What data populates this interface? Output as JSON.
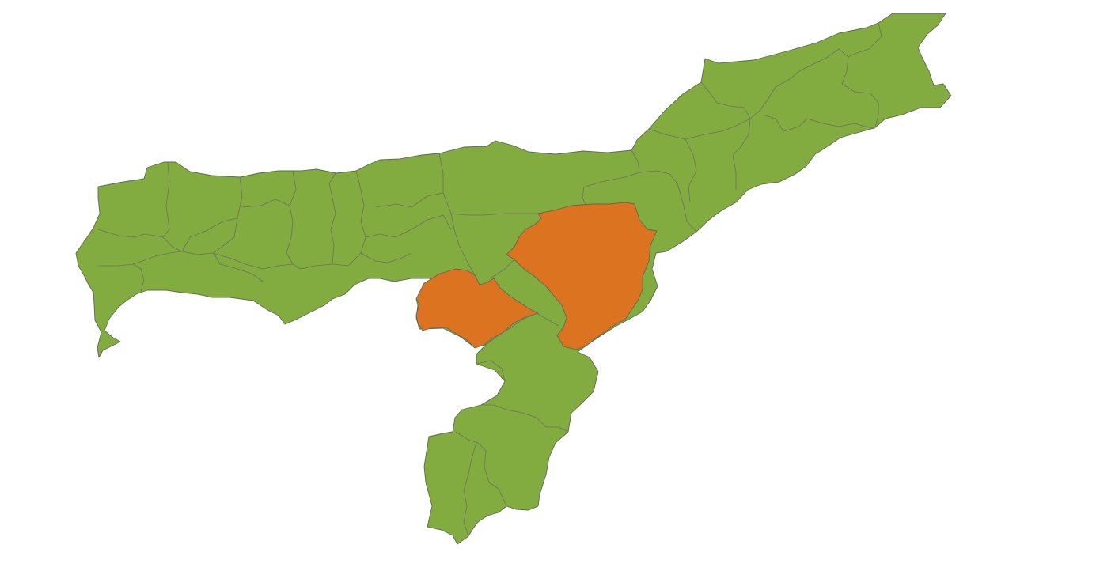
{
  "map": {
    "base_color": "#82ab40",
    "highlight_color": "#dc7321",
    "border_color": "#5f6a55",
    "background_color": "#ffffff",
    "highlighted_region_count": 2
  }
}
